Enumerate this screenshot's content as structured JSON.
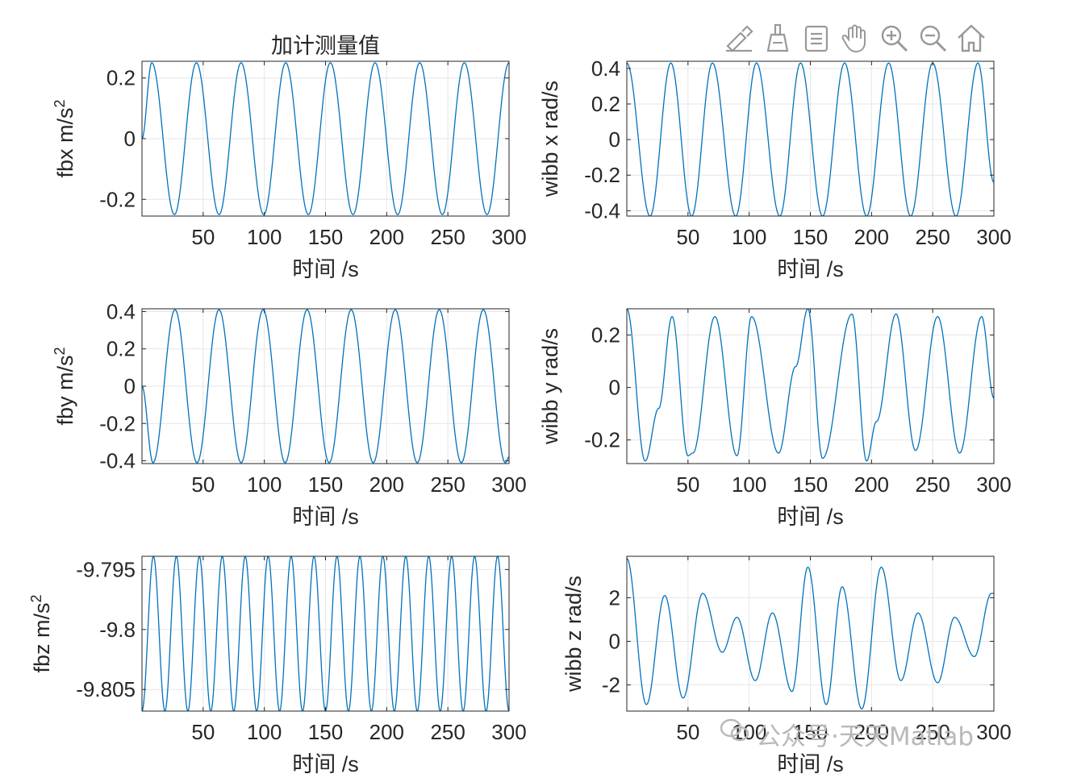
{
  "toolbar": {
    "tools": [
      {
        "name": "edit-plot-icon"
      },
      {
        "name": "brush-icon"
      },
      {
        "name": "data-tips-icon"
      },
      {
        "name": "pan-icon"
      },
      {
        "name": "zoom-in-icon"
      },
      {
        "name": "zoom-out-icon"
      },
      {
        "name": "home-icon"
      }
    ]
  },
  "watermark": {
    "text": "公众号·天天Matlab"
  },
  "colors": {
    "line": "#0072BD",
    "axes": "#262626",
    "grid": "#e6e6e6"
  },
  "chart_data": [
    {
      "type": "line",
      "title": "加计测量值",
      "xlabel": "时间 /s",
      "ylabel": "fbx m/s^2",
      "xlim": [
        0,
        300
      ],
      "ylim": [
        -0.255,
        0.255
      ],
      "xticks": [
        50,
        100,
        150,
        200,
        250,
        300
      ],
      "yticks": [
        -0.2,
        0,
        0.2
      ],
      "yticklabels": [
        "-0.2",
        "0",
        "0.2"
      ],
      "grid": true,
      "series": [
        {
          "peaks": [
            [
              8,
              0.25
            ],
            [
              26.5,
              -0.25
            ],
            [
              44.5,
              0.25
            ],
            [
              63,
              -0.25
            ],
            [
              81,
              0.25
            ],
            [
              99.5,
              -0.25
            ],
            [
              117.5,
              0.25
            ],
            [
              136,
              -0.25
            ],
            [
              154,
              0.25
            ],
            [
              172.5,
              -0.25
            ],
            [
              190.5,
              0.25
            ],
            [
              209,
              -0.25
            ],
            [
              227,
              0.25
            ],
            [
              245.5,
              -0.25
            ],
            [
              263.5,
              0.25
            ],
            [
              282,
              -0.25
            ],
            [
              300,
              0.25
            ]
          ],
          "start": [
            0,
            0
          ]
        }
      ]
    },
    {
      "type": "line",
      "title": "",
      "xlabel": "时间 /s",
      "ylabel": "wibb x rad/s",
      "xlim": [
        0,
        300
      ],
      "ylim": [
        -0.43,
        0.44
      ],
      "xticks": [
        50,
        100,
        150,
        200,
        250,
        300
      ],
      "yticks": [
        -0.4,
        -0.2,
        0,
        0.2,
        0.4
      ],
      "yticklabels": [
        "-0.4",
        "-0.2",
        "0",
        "0.2",
        "0.4"
      ],
      "grid": true,
      "series": [
        {
          "peaks": [
            [
              0,
              0.43
            ],
            [
              19,
              -0.43
            ],
            [
              36,
              0.43
            ],
            [
              53,
              -0.43
            ],
            [
              70,
              0.43
            ],
            [
              89,
              -0.43
            ],
            [
              106,
              0.43
            ],
            [
              125,
              -0.43
            ],
            [
              142,
              0.43
            ],
            [
              160,
              -0.43
            ],
            [
              178,
              0.43
            ],
            [
              196,
              -0.43
            ],
            [
              214,
              0.43
            ],
            [
              232,
              -0.43
            ],
            [
              250,
              0.43
            ],
            [
              269,
              -0.43
            ],
            [
              287,
              0.43
            ],
            [
              300,
              -0.24
            ]
          ],
          "start": [
            0,
            0.43
          ]
        }
      ]
    },
    {
      "type": "line",
      "title": "",
      "xlabel": "时间 /s",
      "ylabel": "fby m/s^2",
      "xlim": [
        0,
        300
      ],
      "ylim": [
        -0.415,
        0.415
      ],
      "xticks": [
        50,
        100,
        150,
        200,
        250,
        300
      ],
      "yticks": [
        -0.4,
        -0.2,
        0,
        0.2,
        0.4
      ],
      "yticklabels": [
        "-0.4",
        "-0.2",
        "0",
        "0.2",
        "0.4"
      ],
      "grid": true,
      "series": [
        {
          "peaks": [
            [
              0,
              0
            ],
            [
              9,
              -0.41
            ],
            [
              27,
              0.41
            ],
            [
              45,
              -0.41
            ],
            [
              63,
              0.41
            ],
            [
              81,
              -0.41
            ],
            [
              99,
              0.41
            ],
            [
              117,
              -0.41
            ],
            [
              135,
              0.41
            ],
            [
              153,
              -0.41
            ],
            [
              171,
              0.41
            ],
            [
              189,
              -0.41
            ],
            [
              207,
              0.41
            ],
            [
              225,
              -0.41
            ],
            [
              243,
              0.41
            ],
            [
              261,
              -0.41
            ],
            [
              279,
              0.41
            ],
            [
              297,
              -0.41
            ],
            [
              300,
              -0.38
            ]
          ],
          "start": [
            0,
            0
          ]
        }
      ]
    },
    {
      "type": "line",
      "title": "",
      "xlabel": "时间 /s",
      "ylabel": "wibb y rad/s",
      "xlim": [
        0,
        300
      ],
      "ylim": [
        -0.29,
        0.3
      ],
      "xticks": [
        50,
        100,
        150,
        200,
        250,
        300
      ],
      "yticks": [
        -0.2,
        0,
        0.2
      ],
      "yticklabels": [
        "-0.2",
        "0",
        "0.2"
      ],
      "grid": true,
      "series": [
        {
          "peaks": [
            [
              0,
              0.3
            ],
            [
              15,
              -0.28
            ],
            [
              26,
              -0.08
            ],
            [
              37,
              0.27
            ],
            [
              50,
              -0.26
            ],
            [
              54,
              -0.25
            ],
            [
              72,
              0.27
            ],
            [
              90,
              -0.26
            ],
            [
              102,
              0.27
            ],
            [
              124,
              -0.25
            ],
            [
              138,
              0.08
            ],
            [
              148,
              0.3
            ],
            [
              160,
              -0.27
            ],
            [
              184,
              0.28
            ],
            [
              196,
              -0.28
            ],
            [
              204,
              -0.13
            ],
            [
              220,
              0.28
            ],
            [
              236,
              -0.24
            ],
            [
              254,
              0.27
            ],
            [
              272,
              -0.25
            ],
            [
              290,
              0.27
            ],
            [
              300,
              -0.04
            ]
          ],
          "start": [
            0,
            0.3
          ]
        }
      ]
    },
    {
      "type": "line",
      "title": "",
      "xlabel": "时间 /s",
      "ylabel": "fbz m/s^2",
      "xlim": [
        0,
        300
      ],
      "ylim": [
        -9.8068,
        -9.7939
      ],
      "xticks": [
        50,
        100,
        150,
        200,
        250,
        300
      ],
      "yticks": [
        -9.805,
        -9.8,
        -9.795
      ],
      "yticklabels": [
        "-9.805",
        "-9.8",
        "-9.795"
      ],
      "grid": true,
      "series": [
        {
          "cycle_period": 18.75,
          "min": -9.8068,
          "max": -9.7939,
          "start": [
            0,
            -9.8068
          ]
        }
      ]
    },
    {
      "type": "line",
      "title": "",
      "xlabel": "时间 /s",
      "ylabel": "wibb z rad/s",
      "xlim": [
        0,
        300
      ],
      "ylim": [
        -3.2,
        3.9
      ],
      "xticks": [
        50,
        100,
        150,
        200,
        250,
        300
      ],
      "yticks": [
        -2,
        0,
        2
      ],
      "yticklabels": [
        "-2",
        "0",
        "2"
      ],
      "grid": true,
      "series": [
        {
          "peaks": [
            [
              0,
              3.8
            ],
            [
              16,
              -2.9
            ],
            [
              31,
              2.1
            ],
            [
              46,
              -2.6
            ],
            [
              62,
              2.2
            ],
            [
              78,
              -0.5
            ],
            [
              90,
              1.1
            ],
            [
              105,
              -1.8
            ],
            [
              119,
              1.3
            ],
            [
              135,
              -2.3
            ],
            [
              148,
              3.4
            ],
            [
              163,
              -2.9
            ],
            [
              176,
              2.5
            ],
            [
              192,
              -3.1
            ],
            [
              208,
              3.4
            ],
            [
              224,
              -1.8
            ],
            [
              238,
              1.3
            ],
            [
              254,
              -1.9
            ],
            [
              268,
              1.1
            ],
            [
              284,
              -0.7
            ],
            [
              298,
              2.2
            ],
            [
              300,
              2.2
            ]
          ],
          "start": [
            0,
            3.8
          ]
        }
      ]
    }
  ]
}
